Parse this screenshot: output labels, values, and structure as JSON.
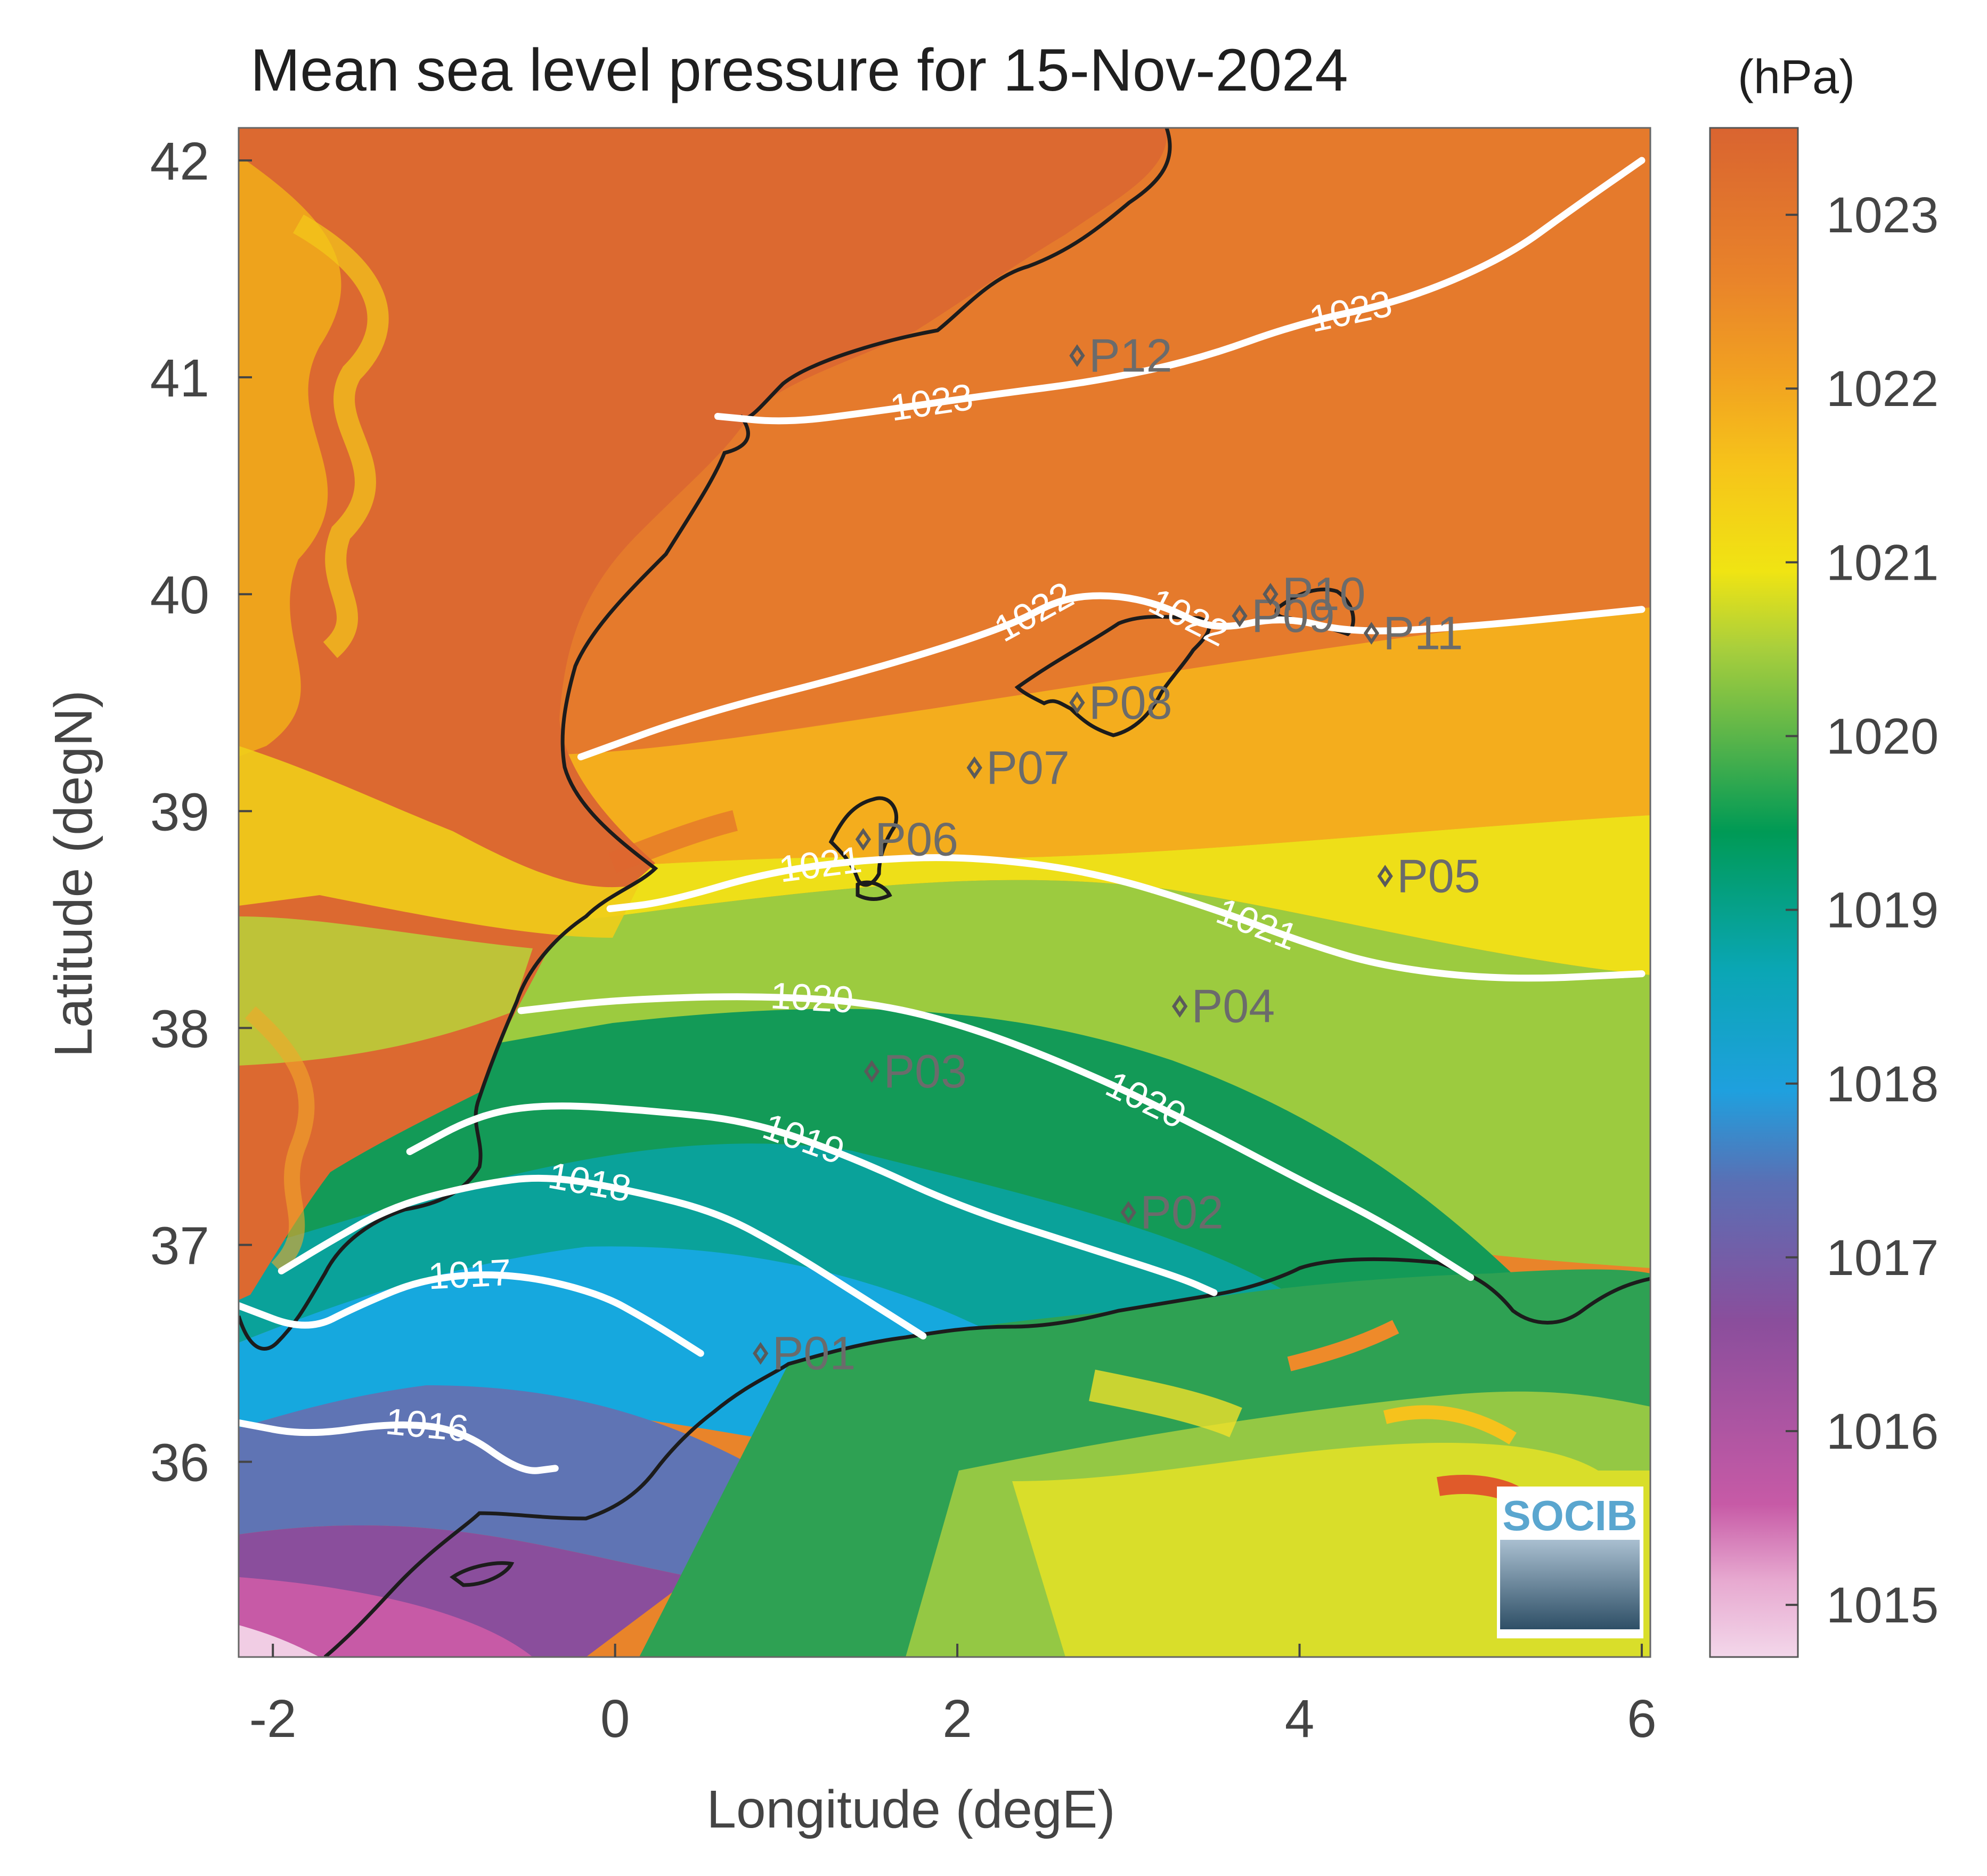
{
  "chart_data": {
    "type": "heatmap",
    "title": "Mean sea level pressure for 15-Nov-2024",
    "colorbar_unit": "(hPa)",
    "xlabel": "Longitude (degE)",
    "ylabel": "Latitude (degN)",
    "xlim": [
      -2.2,
      6.05
    ],
    "ylim": [
      35.1,
      42.15
    ],
    "x_ticks": [
      -2,
      0,
      2,
      4,
      6
    ],
    "x_tick_labels": [
      "-2",
      "0",
      "2",
      "4",
      "6"
    ],
    "y_ticks": [
      36,
      37,
      38,
      39,
      40,
      41,
      42
    ],
    "y_tick_labels": [
      "36",
      "37",
      "38",
      "39",
      "40",
      "41",
      "42"
    ],
    "colorbar_range": [
      1014.7,
      1023.5
    ],
    "colorbar_ticks": [
      1015,
      1016,
      1017,
      1018,
      1019,
      1020,
      1021,
      1022,
      1023
    ],
    "colorbar_tick_labels": [
      "1015",
      "1016",
      "1017",
      "1018",
      "1019",
      "1020",
      "1021",
      "1022",
      "1023"
    ],
    "colormap": [
      "#f3d7ea",
      "#c75aa6",
      "#8a4e9c",
      "#5a6fb4",
      "#0ca6dc",
      "#0aa59b",
      "#009a55",
      "#5ab44a",
      "#b8d433",
      "#f4e40c",
      "#f6b61a",
      "#e9842a",
      "#d96430"
    ],
    "contour_color": "#ffffff",
    "coastline_color": "#1c1c1c",
    "contours": [
      {
        "level": 1023,
        "labels": [
          "1023",
          "1023"
        ],
        "path": [
          [
            0.6,
            40.82
          ],
          [
            1.0,
            40.79
          ],
          [
            1.5,
            40.84
          ],
          [
            2.2,
            40.92
          ],
          [
            2.8,
            40.98
          ],
          [
            3.4,
            41.08
          ],
          [
            4.0,
            41.25
          ],
          [
            4.6,
            41.35
          ],
          [
            5.2,
            41.55
          ],
          [
            5.6,
            41.78
          ],
          [
            6.0,
            42.0
          ]
        ]
      },
      {
        "level": 1022,
        "labels": [
          "1022",
          "1022"
        ],
        "path": [
          [
            -0.2,
            39.25
          ],
          [
            0.5,
            39.45
          ],
          [
            1.5,
            39.65
          ],
          [
            2.3,
            39.85
          ],
          [
            2.6,
            39.98
          ],
          [
            2.9,
            40.0
          ],
          [
            3.2,
            39.95
          ],
          [
            3.5,
            39.83
          ],
          [
            3.9,
            39.9
          ],
          [
            4.3,
            39.82
          ],
          [
            5.0,
            39.85
          ],
          [
            6.0,
            39.93
          ]
        ]
      },
      {
        "level": 1021,
        "labels": [
          "1021",
          "1021"
        ],
        "path": [
          [
            -0.03,
            38.55
          ],
          [
            0.3,
            38.58
          ],
          [
            0.9,
            38.72
          ],
          [
            1.5,
            38.78
          ],
          [
            2.1,
            38.79
          ],
          [
            2.8,
            38.72
          ],
          [
            3.5,
            38.55
          ],
          [
            4.0,
            38.4
          ],
          [
            4.5,
            38.28
          ],
          [
            5.2,
            38.22
          ],
          [
            6.0,
            38.25
          ]
        ]
      },
      {
        "level": 1020,
        "labels": [
          "1020",
          "1020"
        ],
        "path": [
          [
            -0.55,
            38.08
          ],
          [
            0,
            38.13
          ],
          [
            0.8,
            38.15
          ],
          [
            1.5,
            38.12
          ],
          [
            2.1,
            38.0
          ],
          [
            2.8,
            37.78
          ],
          [
            3.4,
            37.55
          ],
          [
            4.0,
            37.3
          ],
          [
            4.5,
            37.1
          ],
          [
            5.0,
            36.85
          ]
        ]
      },
      {
        "level": 1019,
        "labels": [
          "1019"
        ],
        "path": [
          [
            -1.2,
            37.43
          ],
          [
            -0.8,
            37.6
          ],
          [
            -0.4,
            37.65
          ],
          [
            0.2,
            37.62
          ],
          [
            0.8,
            37.57
          ],
          [
            1.4,
            37.4
          ],
          [
            2.0,
            37.18
          ],
          [
            2.7,
            37.0
          ],
          [
            3.3,
            36.85
          ],
          [
            3.5,
            36.78
          ]
        ]
      },
      {
        "level": 1018,
        "labels": [
          "1018"
        ],
        "path": [
          [
            -1.95,
            36.88
          ],
          [
            -1.7,
            37.0
          ],
          [
            -1.3,
            37.18
          ],
          [
            -0.8,
            37.28
          ],
          [
            -0.4,
            37.32
          ],
          [
            0.1,
            37.25
          ],
          [
            0.6,
            37.15
          ],
          [
            1.0,
            36.98
          ],
          [
            1.4,
            36.78
          ],
          [
            1.8,
            36.58
          ]
        ]
      },
      {
        "level": 1017,
        "labels": [
          "1017"
        ],
        "path": [
          [
            -2.2,
            36.72
          ],
          [
            -1.8,
            36.6
          ],
          [
            -1.5,
            36.72
          ],
          [
            -1.1,
            36.85
          ],
          [
            -0.6,
            36.87
          ],
          [
            -0.1,
            36.78
          ],
          [
            0.2,
            36.65
          ],
          [
            0.5,
            36.5
          ]
        ]
      },
      {
        "level": 1016,
        "labels": [
          "1016"
        ],
        "path": [
          [
            -2.2,
            36.18
          ],
          [
            -1.8,
            36.12
          ],
          [
            -1.3,
            36.18
          ],
          [
            -0.9,
            36.15
          ],
          [
            -0.55,
            35.95
          ],
          [
            -0.35,
            35.97
          ]
        ]
      }
    ],
    "stations": [
      {
        "id": "P01",
        "lon": 0.85,
        "lat": 36.5
      },
      {
        "id": "P02",
        "lon": 3.0,
        "lat": 37.15
      },
      {
        "id": "P03",
        "lon": 1.5,
        "lat": 37.8
      },
      {
        "id": "P04",
        "lon": 3.3,
        "lat": 38.1
      },
      {
        "id": "P05",
        "lon": 4.5,
        "lat": 38.7
      },
      {
        "id": "P06",
        "lon": 1.45,
        "lat": 38.87
      },
      {
        "id": "P07",
        "lon": 2.1,
        "lat": 39.2
      },
      {
        "id": "P08",
        "lon": 2.7,
        "lat": 39.5
      },
      {
        "id": "P09",
        "lon": 3.65,
        "lat": 39.9
      },
      {
        "id": "P10",
        "lon": 3.83,
        "lat": 40.0
      },
      {
        "id": "P11",
        "lon": 4.42,
        "lat": 39.82
      },
      {
        "id": "P12",
        "lon": 2.7,
        "lat": 41.1
      }
    ]
  },
  "logo": {
    "text": "SOCIB"
  }
}
